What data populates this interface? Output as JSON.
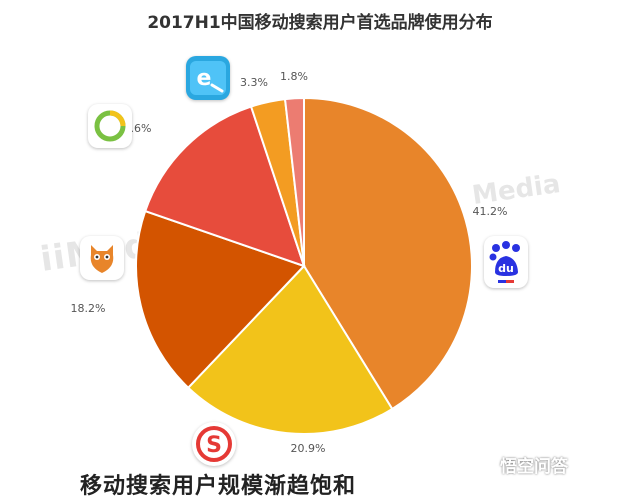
{
  "chart_data": {
    "type": "pie",
    "title": "2017H1中国移动搜索用户首选品牌使用分布",
    "slices": [
      {
        "brand": "baidu-icon",
        "value": 41.2,
        "label": "41.2%",
        "color": "#e8852a"
      },
      {
        "brand": "sogou-icon",
        "value": 20.9,
        "label": "20.9%",
        "color": "#f2c31a"
      },
      {
        "brand": "uc-icon",
        "value": 18.2,
        "label": "18.2%",
        "color": "#d35400"
      },
      {
        "brand": "360-icon",
        "value": 14.6,
        "label": "14.6%",
        "color": "#e74c3c"
      },
      {
        "brand": "ie-search-icon",
        "value": 3.3,
        "label": "3.3%",
        "color": "#f39c22"
      },
      {
        "brand": "other",
        "value": 1.8,
        "label": "1.8%",
        "color": "#ec7c71"
      }
    ],
    "start": "12 o'clock",
    "direction": "clockwise"
  },
  "watermark": "iiMedia",
  "watermark_right": "Media",
  "footer": {
    "text": "移动搜索用户规模渐趋饱和",
    "badge": "悟空问答"
  }
}
